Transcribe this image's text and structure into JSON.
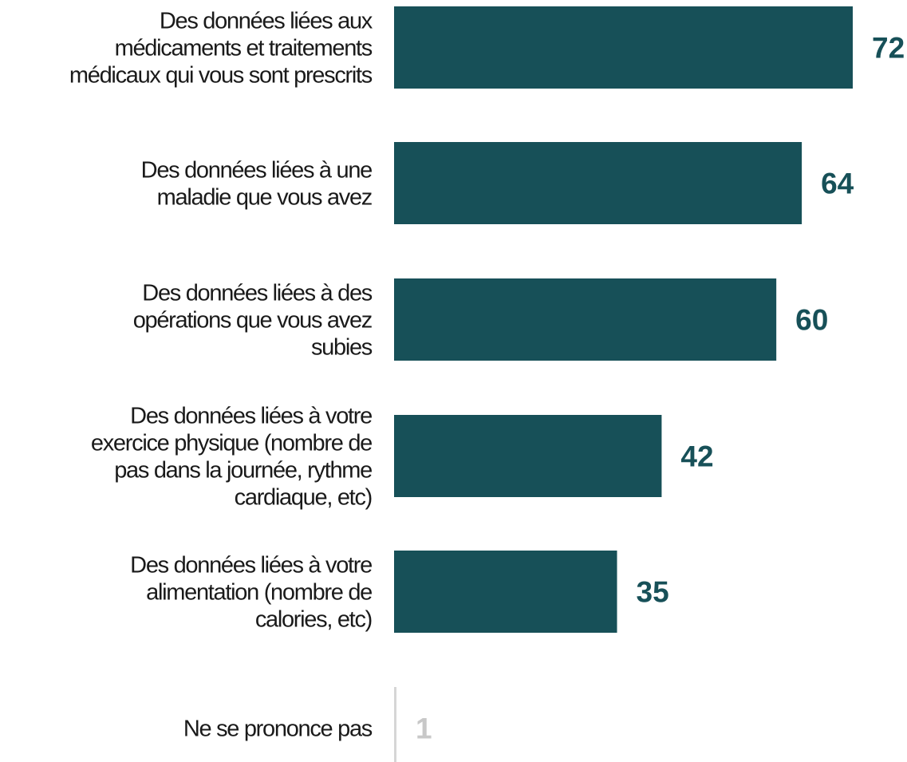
{
  "chart_data": {
    "type": "bar",
    "orientation": "horizontal",
    "categories": [
      [
        "Des données liées aux",
        "médicaments et traitements",
        "médicaux qui vous sont prescrits"
      ],
      [
        "Des données liées à une",
        "maladie que vous avez"
      ],
      [
        "Des données liées à des",
        "opérations que vous avez",
        "subies"
      ],
      [
        "Des données liées à votre",
        "exercice physique (nombre de",
        "pas dans la journée, rythme",
        "cardiaque, etc)"
      ],
      [
        "Des données liées à votre",
        "alimentation (nombre de",
        "calories, etc)"
      ],
      [
        "Ne se prononce pas"
      ]
    ],
    "values": [
      72,
      64,
      60,
      42,
      35,
      1
    ],
    "value_labels": [
      "72",
      "64",
      "60",
      "42",
      "35",
      "1"
    ],
    "bar_colors": [
      "#175058",
      "#175058",
      "#175058",
      "#175058",
      "#175058",
      "#d6d6d6"
    ],
    "label_colors": [
      "#175058",
      "#175058",
      "#175058",
      "#175058",
      "#175058",
      "#c8c8c8"
    ],
    "title": "",
    "xlabel": "",
    "ylabel": "",
    "xlim": [
      0,
      72
    ],
    "grid": false,
    "legend": "none"
  }
}
